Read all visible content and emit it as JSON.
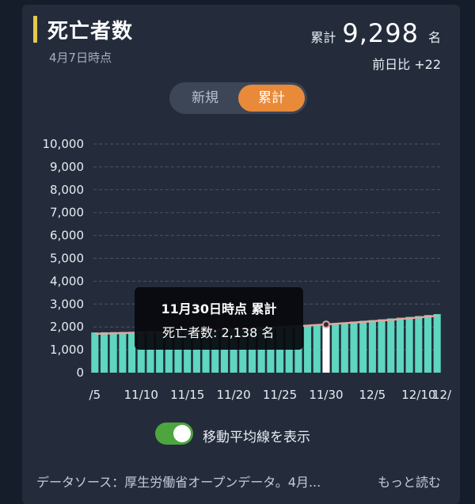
{
  "header": {
    "title": "死亡者数",
    "as_of": "4月7日時点",
    "total_label": "累計",
    "total_value": "9,298",
    "total_unit": "名",
    "diff": "前日比 +22"
  },
  "mode_toggle": {
    "options": [
      "新規",
      "累計"
    ],
    "selected": "累計"
  },
  "tooltip": {
    "title": "11月30日時点 累計",
    "value_text": "死亡者数: 2,138 名"
  },
  "moving_average": {
    "label": "移動平均線を表示",
    "enabled": true
  },
  "footer": {
    "source": "データソース：厚生労働省オープンデータ。4月...",
    "more": "もっと読む"
  },
  "colors": {
    "bar": "#5ed6c0",
    "bar_highlight": "#ffffff",
    "line": "#e2a79f",
    "accent": "#e88a3a",
    "title_accent": "#e6c84b",
    "switch_on": "#4ca53f"
  },
  "chart_data": {
    "type": "bar",
    "ylim": [
      0,
      10000
    ],
    "yticks": [
      "0",
      "1,000",
      "2,000",
      "3,000",
      "4,000",
      "5,000",
      "6,000",
      "7,000",
      "8,000",
      "9,000",
      "10,000"
    ],
    "xtick_labels": [
      "/5",
      "11/10",
      "11/15",
      "11/20",
      "11/25",
      "11/30",
      "12/5",
      "12/10",
      "12/"
    ],
    "categories": [
      "11/5",
      "11/6",
      "11/7",
      "11/8",
      "11/9",
      "11/10",
      "11/11",
      "11/12",
      "11/13",
      "11/14",
      "11/15",
      "11/16",
      "11/17",
      "11/18",
      "11/19",
      "11/20",
      "11/21",
      "11/22",
      "11/23",
      "11/24",
      "11/25",
      "11/26",
      "11/27",
      "11/28",
      "11/29",
      "11/30",
      "12/1",
      "12/2",
      "12/3",
      "12/4",
      "12/5",
      "12/6",
      "12/7",
      "12/8",
      "12/9",
      "12/10",
      "12/11",
      "12/12"
    ],
    "values": [
      1760,
      1766,
      1774,
      1781,
      1788,
      1797,
      1807,
      1815,
      1827,
      1837,
      1846,
      1858,
      1873,
      1891,
      1906,
      1920,
      1935,
      1953,
      1973,
      1994,
      2015,
      2039,
      2063,
      2088,
      2110,
      2138,
      2167,
      2201,
      2235,
      2268,
      2300,
      2332,
      2370,
      2403,
      2440,
      2477,
      2520,
      2561
    ],
    "moving_average": [
      1700,
      1710,
      1720,
      1731,
      1742,
      1753,
      1765,
      1777,
      1790,
      1803,
      1817,
      1831,
      1846,
      1862,
      1878,
      1895,
      1912,
      1930,
      1949,
      1969,
      1990,
      2012,
      2035,
      2059,
      2083,
      2108,
      2134,
      2162,
      2191,
      2220,
      2250,
      2281,
      2313,
      2346,
      2380,
      2415,
      2451,
      2488
    ],
    "highlight_category": "11/30",
    "grid": true
  }
}
